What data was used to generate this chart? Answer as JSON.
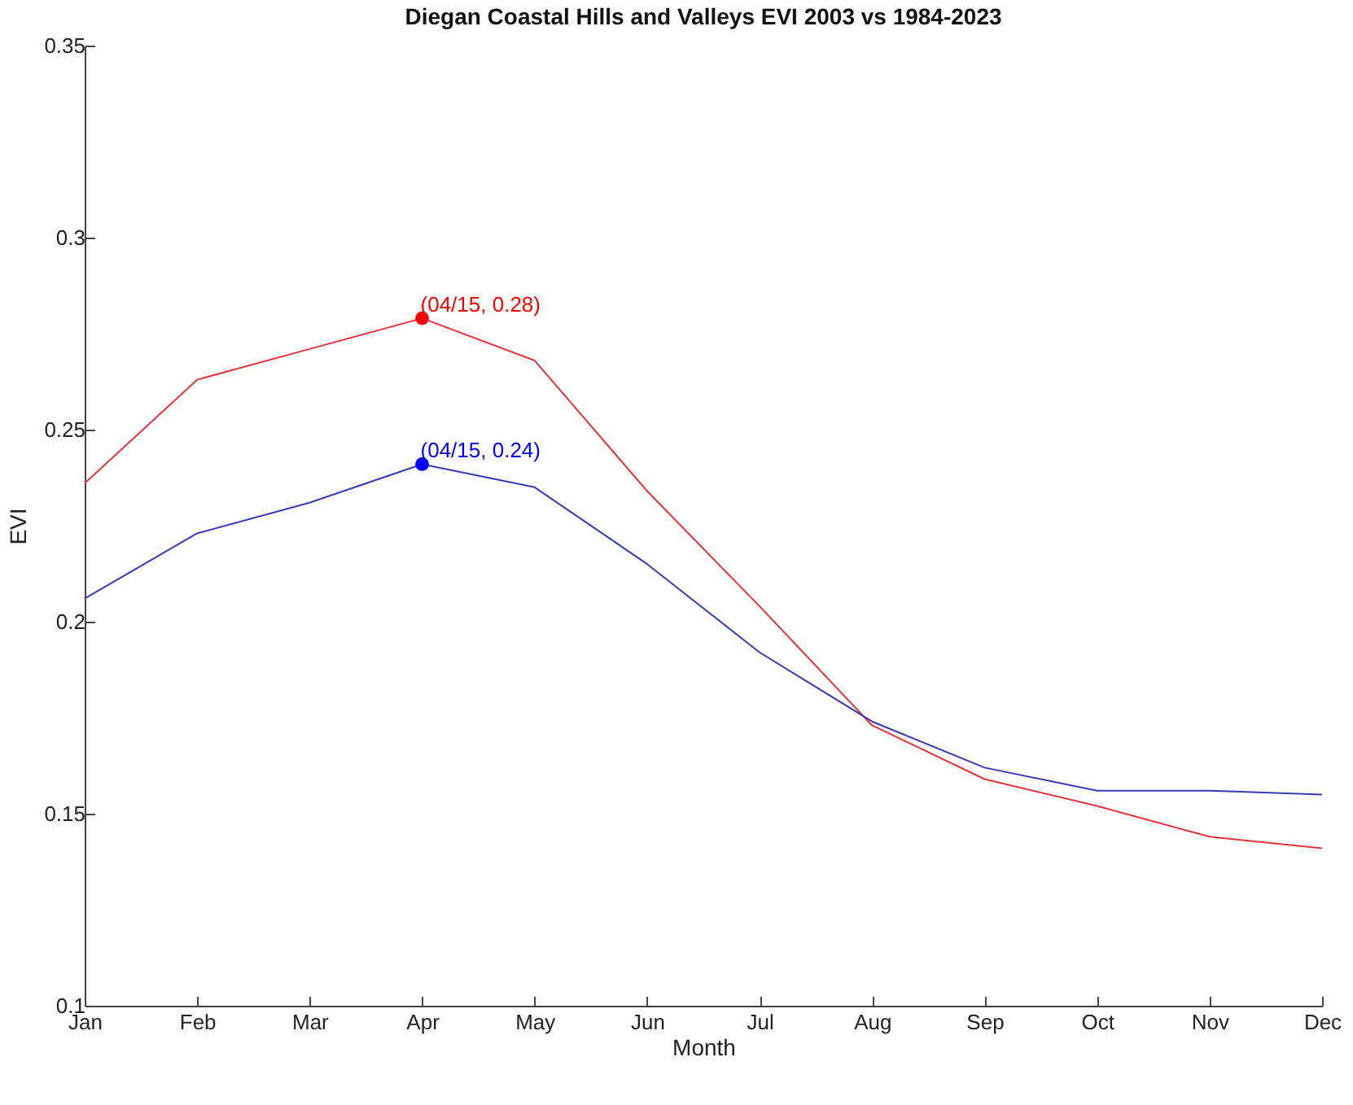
{
  "chart_data": {
    "type": "line",
    "title": "Diegan Coastal Hills and Valleys EVI 2003 vs 1984-2023",
    "xlabel": "Month",
    "ylabel": "EVI",
    "categories": [
      "Jan",
      "Feb",
      "Mar",
      "Apr",
      "May",
      "Jun",
      "Jul",
      "Aug",
      "Sep",
      "Oct",
      "Nov",
      "Dec"
    ],
    "series": [
      {
        "color": "#e0353a",
        "values": [
          0.236,
          0.263,
          0.271,
          0.279,
          0.268,
          0.234,
          0.204,
          0.173,
          0.159,
          0.152,
          0.144,
          0.141
        ]
      },
      {
        "color": "#3a3ab0",
        "values": [
          0.206,
          0.223,
          0.231,
          0.241,
          0.235,
          0.215,
          0.192,
          0.174,
          0.162,
          0.156,
          0.156,
          0.155
        ]
      },
      {
        "type": "scatter",
        "marker": "circle",
        "color": "#ff0000",
        "x": [
          "Apr"
        ],
        "values": [
          0.279
        ]
      },
      {
        "type": "scatter",
        "marker": "circle",
        "color": "#0000ff",
        "x": [
          "Apr"
        ],
        "values": [
          0.241
        ]
      }
    ],
    "annotations": [
      {
        "text": "(04/15, 0.28)",
        "x": "Apr",
        "y": 0.279
      },
      {
        "text": "(04/15, 0.24)",
        "x": "Apr",
        "y": 0.241
      }
    ],
    "ylim": [
      0.1,
      0.35
    ],
    "yticks": [
      0.1,
      0.15,
      0.2,
      0.25,
      0.3,
      0.35
    ],
    "grid": false,
    "line_style": "solid"
  }
}
